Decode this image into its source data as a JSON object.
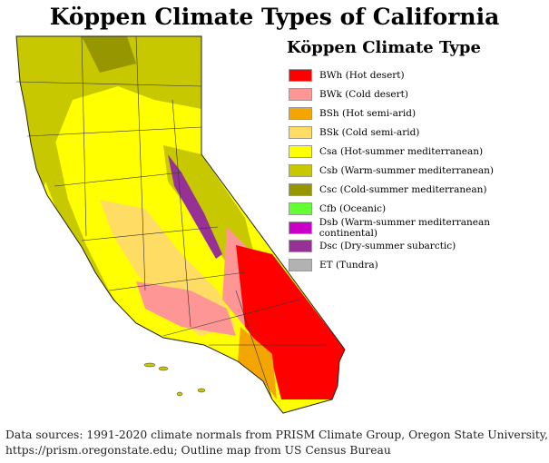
{
  "title": "Köppen Climate Types of California",
  "legend": {
    "title": "Köppen Climate Type",
    "items": [
      {
        "label": "BWh (Hot desert)",
        "color": "#ff0000"
      },
      {
        "label": "BWk (Cold desert)",
        "color": "#ff9696"
      },
      {
        "label": "BSh (Hot semi-arid)",
        "color": "#f5a500"
      },
      {
        "label": "BSk (Cold semi-arid)",
        "color": "#ffdc64"
      },
      {
        "label": "Csa (Hot-summer mediterranean)",
        "color": "#ffff00"
      },
      {
        "label": "Csb (Warm-summer mediterranean)",
        "color": "#c8c800"
      },
      {
        "label": "Csc (Cold-summer mediterranean)",
        "color": "#969600"
      },
      {
        "label": "Cfb (Oceanic)",
        "color": "#64ff32"
      },
      {
        "label": "Dsb (Warm-summer mediterranean continental)",
        "color": "#c800c8"
      },
      {
        "label": "Dsc (Dry-summer subarctic)",
        "color": "#963296"
      },
      {
        "label": "ET (Tundra)",
        "color": "#b2b2b2"
      }
    ]
  },
  "footer": {
    "line1": "Data sources: 1991-2020 climate normals from PRISM Climate Group, Oregon State University,",
    "line2": "https://prism.oregonstate.edu; Outline map from US Census Bureau"
  }
}
